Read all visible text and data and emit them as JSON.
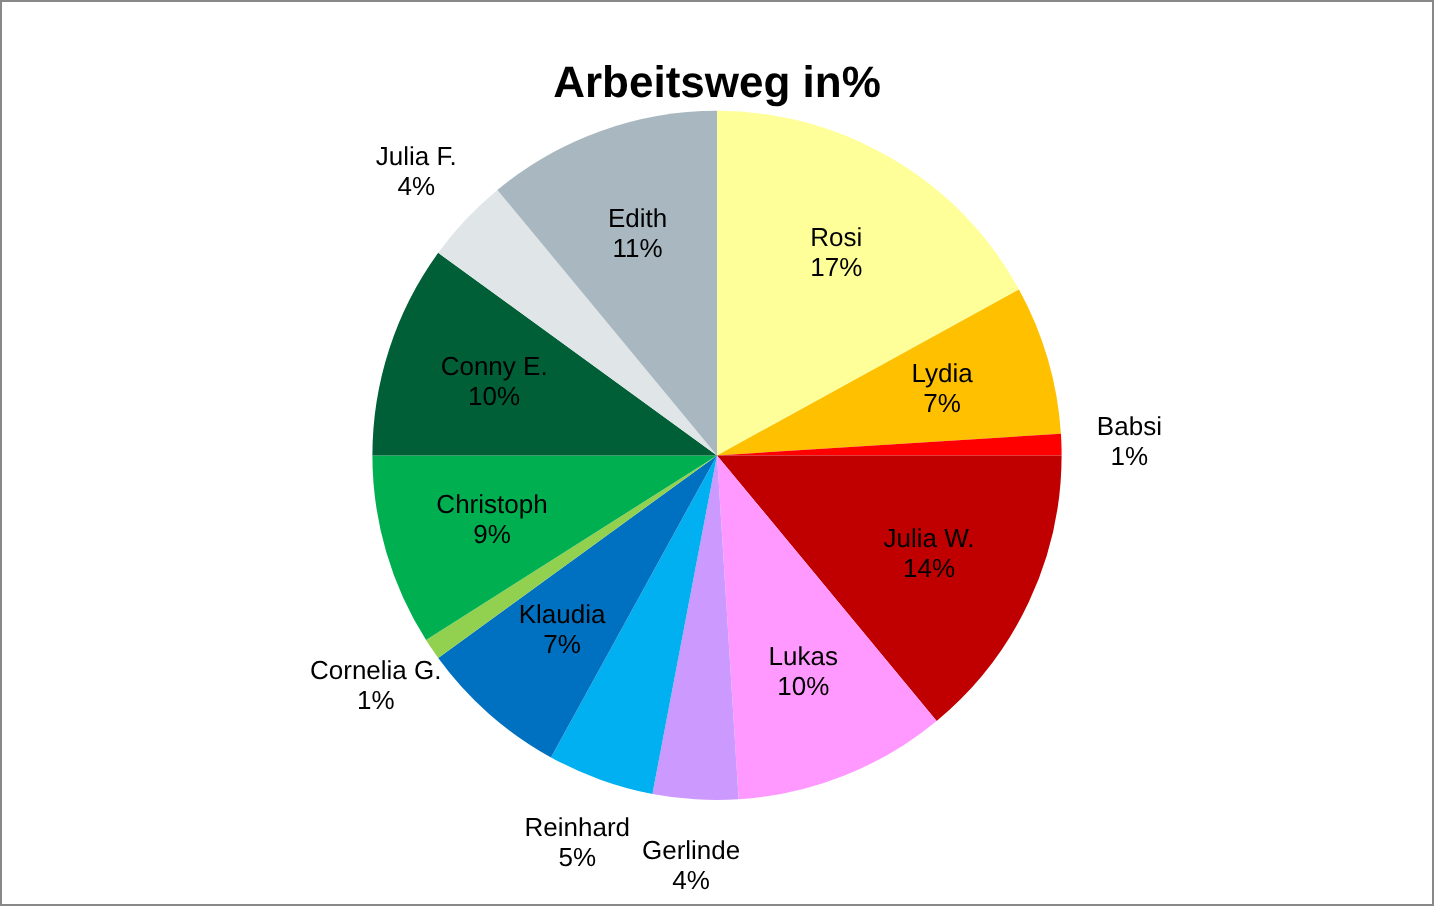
{
  "chart_data": {
    "type": "pie",
    "title": "Arbeitsweg in%",
    "categories": [
      "Rosi",
      "Lydia",
      "Babsi",
      "Julia W.",
      "Lukas",
      "Gerlinde",
      "Reinhard",
      "Klaudia",
      "Cornelia G.",
      "Christoph",
      "Conny E.",
      "Julia F.",
      "Edith"
    ],
    "values": [
      17,
      7,
      1,
      14,
      10,
      4,
      5,
      7,
      1,
      9,
      10,
      4,
      11
    ],
    "value_labels": [
      "17%",
      "7%",
      "1%",
      "14%",
      "10%",
      "4%",
      "5%",
      "7%",
      "1%",
      "9%",
      "10%",
      "4%",
      "11%"
    ],
    "colors": [
      "#ffff99",
      "#ffc000",
      "#ff0000",
      "#c00000",
      "#ff99ff",
      "#cc99ff",
      "#00b0f0",
      "#0070c0",
      "#92d050",
      "#00b050",
      "#005f37",
      "#e0e5e8",
      "#a9b8c0"
    ],
    "legend": false
  }
}
